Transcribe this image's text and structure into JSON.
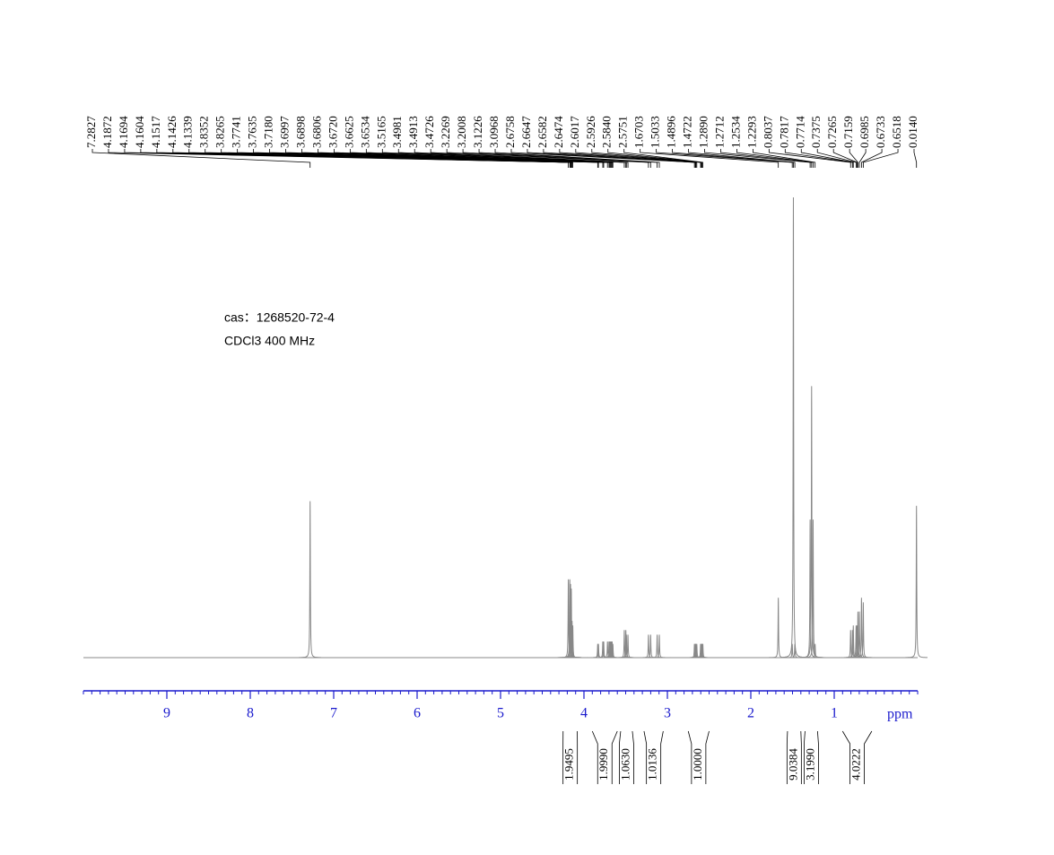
{
  "chart_data": {
    "type": "nmr",
    "annotations": [
      "cas：1268520-72-4",
      "CDCl3  400 MHz"
    ],
    "x_label": "ppm",
    "xlim": [
      10,
      0
    ],
    "xticks": [
      9,
      8,
      7,
      6,
      5,
      4,
      3,
      2,
      1
    ],
    "minor_tick_step": 0.1,
    "color": "#888888",
    "axis_color": "#1a1acd",
    "peaks": [
      {
        "value": 7.2827,
        "label": "7.2827",
        "height": 34
      },
      {
        "value": 4.1872,
        "label": "4.1872",
        "height": 17
      },
      {
        "value": 4.1694,
        "label": "4.1694",
        "height": 17
      },
      {
        "value": 4.1604,
        "label": "4.1604",
        "height": 16
      },
      {
        "value": 4.1517,
        "label": "4.1517",
        "height": 15
      },
      {
        "value": 4.1426,
        "label": "4.1426",
        "height": 8
      },
      {
        "value": 4.1339,
        "label": "4.1339",
        "height": 7
      },
      {
        "value": 3.8352,
        "label": "3.8352",
        "height": 3
      },
      {
        "value": 3.8265,
        "label": "3.8265",
        "height": 3
      },
      {
        "value": 3.7741,
        "label": "3.7741",
        "height": 3.5
      },
      {
        "value": 3.7635,
        "label": "3.7635",
        "height": 3.5
      },
      {
        "value": 3.718,
        "label": "3.7180",
        "height": 3.5
      },
      {
        "value": 3.6997,
        "label": "3.6997",
        "height": 3.5
      },
      {
        "value": 3.6898,
        "label": "3.6898",
        "height": 3.5
      },
      {
        "value": 3.6806,
        "label": "3.6806",
        "height": 3.5
      },
      {
        "value": 3.672,
        "label": "3.6720",
        "height": 3.5
      },
      {
        "value": 3.6625,
        "label": "3.6625",
        "height": 3.5
      },
      {
        "value": 3.6534,
        "label": "3.6534",
        "height": 3
      },
      {
        "value": 3.5165,
        "label": "3.5165",
        "height": 6
      },
      {
        "value": 3.4981,
        "label": "3.4981",
        "height": 6
      },
      {
        "value": 3.4913,
        "label": "3.4913",
        "height": 5
      },
      {
        "value": 3.4726,
        "label": "3.4726",
        "height": 5
      },
      {
        "value": 3.2269,
        "label": "3.2269",
        "height": 5
      },
      {
        "value": 3.2008,
        "label": "3.2008",
        "height": 5
      },
      {
        "value": 3.1226,
        "label": "3.1226",
        "height": 5
      },
      {
        "value": 3.0968,
        "label": "3.0968",
        "height": 5
      },
      {
        "value": 2.6758,
        "label": "2.6758",
        "height": 3
      },
      {
        "value": 2.6647,
        "label": "2.6647",
        "height": 3
      },
      {
        "value": 2.6582,
        "label": "2.6582",
        "height": 3
      },
      {
        "value": 2.6474,
        "label": "2.6474",
        "height": 3
      },
      {
        "value": 2.6017,
        "label": "2.6017",
        "height": 3
      },
      {
        "value": 2.5926,
        "label": "2.5926",
        "height": 3
      },
      {
        "value": 2.584,
        "label": "2.5840",
        "height": 3
      },
      {
        "value": 2.5751,
        "label": "2.5751",
        "height": 3
      },
      {
        "value": 1.6703,
        "label": "1.6703",
        "height": 13
      },
      {
        "value": 1.5033,
        "label": "1.5033",
        "height": 3
      },
      {
        "value": 1.4896,
        "label": "1.4896",
        "height": 100
      },
      {
        "value": 1.4722,
        "label": "1.4722",
        "height": 3
      },
      {
        "value": 1.289,
        "label": "1.2890",
        "height": 30
      },
      {
        "value": 1.2712,
        "label": "1.2712",
        "height": 59
      },
      {
        "value": 1.2534,
        "label": "1.2534",
        "height": 30
      },
      {
        "value": 1.2293,
        "label": "1.2293",
        "height": 3
      },
      {
        "value": 0.8037,
        "label": "0.8037",
        "height": 6
      },
      {
        "value": 0.7817,
        "label": "0.7817",
        "height": 6
      },
      {
        "value": 0.7714,
        "label": "0.7714",
        "height": 7
      },
      {
        "value": 0.7375,
        "label": "0.7375",
        "height": 7
      },
      {
        "value": 0.7265,
        "label": "0.7265",
        "height": 7
      },
      {
        "value": 0.7159,
        "label": "0.7159",
        "height": 10
      },
      {
        "value": 0.6985,
        "label": "0.6985",
        "height": 10
      },
      {
        "value": 0.6733,
        "label": "0.6733",
        "height": 13
      },
      {
        "value": 0.6518,
        "label": "0.6518",
        "height": 12
      },
      {
        "value": 0.014,
        "label": "0.0140",
        "height": 33
      }
    ],
    "ylim": [
      0,
      100
    ],
    "integrals": [
      {
        "value": 1.9495,
        "label": "1.9495",
        "range": [
          4.25,
          4.08
        ]
      },
      {
        "value": 1.999,
        "label": "1.9990",
        "range": [
          3.9,
          3.6
        ]
      },
      {
        "value": 1.063,
        "label": "1.0630",
        "range": [
          3.56,
          3.42
        ]
      },
      {
        "value": 1.0136,
        "label": "1.0136",
        "range": [
          3.28,
          3.05
        ]
      },
      {
        "value": 1.0,
        "label": "1.0000",
        "range": [
          2.75,
          2.5
        ]
      },
      {
        "value": 9.0384,
        "label": "9.0384",
        "range": [
          1.56,
          1.4
        ]
      },
      {
        "value": 3.199,
        "label": "3.1990",
        "range": [
          1.35,
          1.2
        ]
      },
      {
        "value": 4.0222,
        "label": "4.0222",
        "range": [
          0.9,
          0.55
        ]
      }
    ]
  }
}
